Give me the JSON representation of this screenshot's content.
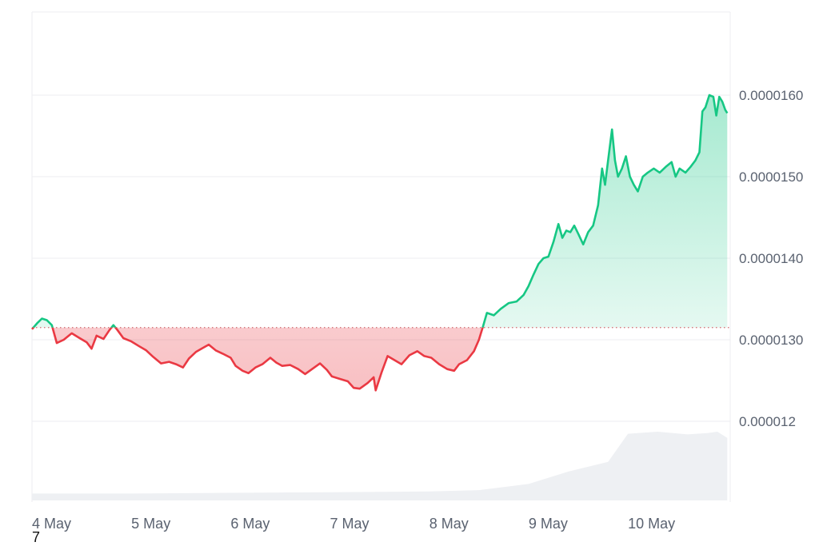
{
  "chart_data": {
    "type": "area",
    "x_tick_labels": [
      "4 May",
      "5 May",
      "6 May",
      "7 May",
      "8 May",
      "9 May",
      "10 May"
    ],
    "y_tick_labels": [
      "0.000012",
      "0.0000130",
      "0.0000140",
      "0.0000150",
      "0.0000160"
    ],
    "y_ticks": [
      1.2e-05,
      1.3e-05,
      1.4e-05,
      1.5e-05,
      1.6e-05
    ],
    "ylim": [
      1.101e-05,
      1.702e-05
    ],
    "xlim": [
      0,
      7.03
    ],
    "baseline": 1.315e-05,
    "grid": true,
    "series": [
      {
        "points": [
          [
            0.0,
            1.313e-05
          ],
          [
            0.05,
            1.32e-05
          ],
          [
            0.1,
            1.326e-05
          ],
          [
            0.15,
            1.324e-05
          ],
          [
            0.2,
            1.318e-05
          ],
          [
            0.25,
            1.296e-05
          ],
          [
            0.32,
            1.3e-05
          ],
          [
            0.4,
            1.308e-05
          ],
          [
            0.48,
            1.302e-05
          ],
          [
            0.55,
            1.297e-05
          ],
          [
            0.6,
            1.289e-05
          ],
          [
            0.65,
            1.305e-05
          ],
          [
            0.72,
            1.301e-05
          ],
          [
            0.78,
            1.312e-05
          ],
          [
            0.82,
            1.318e-05
          ],
          [
            0.86,
            1.312e-05
          ],
          [
            0.92,
            1.302e-05
          ],
          [
            1.0,
            1.298e-05
          ],
          [
            1.08,
            1.292e-05
          ],
          [
            1.15,
            1.287e-05
          ],
          [
            1.22,
            1.279e-05
          ],
          [
            1.3,
            1.271e-05
          ],
          [
            1.38,
            1.273e-05
          ],
          [
            1.45,
            1.27e-05
          ],
          [
            1.52,
            1.266e-05
          ],
          [
            1.58,
            1.277e-05
          ],
          [
            1.65,
            1.285e-05
          ],
          [
            1.72,
            1.29e-05
          ],
          [
            1.78,
            1.294e-05
          ],
          [
            1.85,
            1.287e-05
          ],
          [
            1.92,
            1.283e-05
          ],
          [
            2.0,
            1.278e-05
          ],
          [
            2.05,
            1.268e-05
          ],
          [
            2.12,
            1.262e-05
          ],
          [
            2.18,
            1.259e-05
          ],
          [
            2.25,
            1.266e-05
          ],
          [
            2.32,
            1.27e-05
          ],
          [
            2.4,
            1.278e-05
          ],
          [
            2.46,
            1.272e-05
          ],
          [
            2.52,
            1.268e-05
          ],
          [
            2.6,
            1.269e-05
          ],
          [
            2.68,
            1.264e-05
          ],
          [
            2.75,
            1.258e-05
          ],
          [
            2.82,
            1.264e-05
          ],
          [
            2.9,
            1.271e-05
          ],
          [
            2.97,
            1.263e-05
          ],
          [
            3.02,
            1.255e-05
          ],
          [
            3.1,
            1.252e-05
          ],
          [
            3.18,
            1.249e-05
          ],
          [
            3.24,
            1.241e-05
          ],
          [
            3.3,
            1.24e-05
          ],
          [
            3.38,
            1.247e-05
          ],
          [
            3.44,
            1.254e-05
          ],
          [
            3.46,
            1.238e-05
          ],
          [
            3.52,
            1.26e-05
          ],
          [
            3.58,
            1.28e-05
          ],
          [
            3.65,
            1.275e-05
          ],
          [
            3.72,
            1.27e-05
          ],
          [
            3.8,
            1.281e-05
          ],
          [
            3.88,
            1.286e-05
          ],
          [
            3.95,
            1.28e-05
          ],
          [
            4.02,
            1.278e-05
          ],
          [
            4.1,
            1.27e-05
          ],
          [
            4.18,
            1.264e-05
          ],
          [
            4.25,
            1.262e-05
          ],
          [
            4.3,
            1.27e-05
          ],
          [
            4.38,
            1.275e-05
          ],
          [
            4.45,
            1.286e-05
          ],
          [
            4.5,
            1.3e-05
          ],
          [
            4.54,
            1.316e-05
          ],
          [
            4.58,
            1.333e-05
          ],
          [
            4.65,
            1.33e-05
          ],
          [
            4.72,
            1.338e-05
          ],
          [
            4.8,
            1.345e-05
          ],
          [
            4.88,
            1.347e-05
          ],
          [
            4.95,
            1.355e-05
          ],
          [
            5.0,
            1.366e-05
          ],
          [
            5.05,
            1.38e-05
          ],
          [
            5.1,
            1.393e-05
          ],
          [
            5.15,
            1.4e-05
          ],
          [
            5.2,
            1.402e-05
          ],
          [
            5.25,
            1.42e-05
          ],
          [
            5.3,
            1.442e-05
          ],
          [
            5.34,
            1.425e-05
          ],
          [
            5.38,
            1.434e-05
          ],
          [
            5.42,
            1.432e-05
          ],
          [
            5.46,
            1.44e-05
          ],
          [
            5.5,
            1.43e-05
          ],
          [
            5.55,
            1.417e-05
          ],
          [
            5.6,
            1.432e-05
          ],
          [
            5.65,
            1.44e-05
          ],
          [
            5.7,
            1.465e-05
          ],
          [
            5.74,
            1.51e-05
          ],
          [
            5.77,
            1.49e-05
          ],
          [
            5.8,
            1.52e-05
          ],
          [
            5.84,
            1.558e-05
          ],
          [
            5.87,
            1.52e-05
          ],
          [
            5.9,
            1.5e-05
          ],
          [
            5.94,
            1.51e-05
          ],
          [
            5.98,
            1.525e-05
          ],
          [
            6.02,
            1.5e-05
          ],
          [
            6.06,
            1.49e-05
          ],
          [
            6.1,
            1.482e-05
          ],
          [
            6.15,
            1.5e-05
          ],
          [
            6.2,
            1.505e-05
          ],
          [
            6.26,
            1.51e-05
          ],
          [
            6.32,
            1.505e-05
          ],
          [
            6.38,
            1.512e-05
          ],
          [
            6.44,
            1.518e-05
          ],
          [
            6.48,
            1.5e-05
          ],
          [
            6.52,
            1.51e-05
          ],
          [
            6.58,
            1.505e-05
          ],
          [
            6.63,
            1.512e-05
          ],
          [
            6.68,
            1.52e-05
          ],
          [
            6.72,
            1.53e-05
          ],
          [
            6.75,
            1.58e-05
          ],
          [
            6.78,
            1.585e-05
          ],
          [
            6.82,
            1.6e-05
          ],
          [
            6.86,
            1.598e-05
          ],
          [
            6.89,
            1.575e-05
          ],
          [
            6.92,
            1.598e-05
          ],
          [
            6.95,
            1.592e-05
          ],
          [
            6.98,
            1.582e-05
          ],
          [
            7.0,
            1.578e-05
          ]
        ]
      },
      {
        "name": "volume",
        "points": [
          [
            0.0,
            0.1
          ],
          [
            1.0,
            0.1
          ],
          [
            2.0,
            0.11
          ],
          [
            3.0,
            0.12
          ],
          [
            4.0,
            0.13
          ],
          [
            4.5,
            0.15
          ],
          [
            5.0,
            0.24
          ],
          [
            5.4,
            0.42
          ],
          [
            5.8,
            0.56
          ],
          [
            6.0,
            0.97
          ],
          [
            6.3,
            1.0
          ],
          [
            6.6,
            0.96
          ],
          [
            6.8,
            0.98
          ],
          [
            6.9,
            1.0
          ],
          [
            7.0,
            0.91
          ]
        ]
      }
    ]
  },
  "footer": {
    "corner_note": "7"
  },
  "colors": {
    "up_line": "#16c784",
    "down_line": "#ea3943",
    "up_fill_top": "#16c784",
    "down_fill": "#ea3943",
    "baseline_dots": "#d16a6f",
    "volume_fill": "#eef0f3",
    "grid": "#eceef1",
    "axis_text": "#5a6270"
  }
}
